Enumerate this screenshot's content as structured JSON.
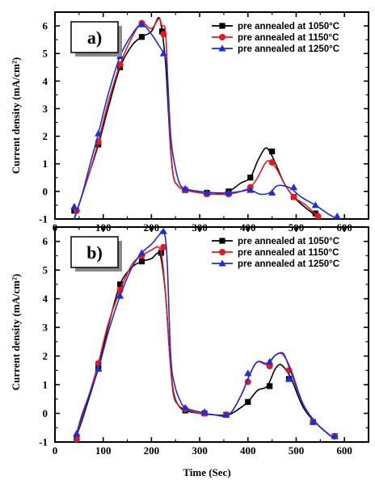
{
  "chart_data": [
    {
      "type": "line",
      "panel_label": "a)",
      "ylabel": "Current density (mA/cm²)",
      "xlabel": "",
      "xlim": [
        0,
        650
      ],
      "ylim": [
        -1,
        6.5
      ],
      "xticks": [
        "0",
        "100",
        "200",
        "300",
        "400",
        "500",
        "600"
      ],
      "yticks": [
        "-1",
        "0",
        "1",
        "2",
        "3",
        "4",
        "5",
        "6"
      ],
      "legend_position": "top-right",
      "series": [
        {
          "name": "pre annealed at 1050°C",
          "color": "#000000",
          "marker": "square",
          "x": [
            40,
            55,
            70,
            90,
            110,
            135,
            160,
            180,
            200,
            215,
            222,
            230,
            238,
            245,
            255,
            270,
            300,
            330,
            360,
            385,
            405,
            420,
            435,
            445,
            460,
            475,
            495,
            520,
            550
          ],
          "y": [
            -1,
            -0.2,
            0.6,
            1.7,
            3.0,
            4.5,
            5.3,
            5.6,
            5.8,
            6.3,
            5.8,
            4.5,
            2.0,
            0.6,
            0.2,
            0.05,
            -0.05,
            -0.1,
            0.0,
            0.3,
            0.5,
            1.1,
            1.55,
            1.45,
            0.9,
            0.3,
            -0.2,
            -0.6,
            -1.0
          ],
          "marker_x": [
            40,
            90,
            135,
            180,
            222,
            270,
            315,
            360,
            405,
            450,
            495,
            540
          ],
          "marker_y": [
            -0.7,
            1.7,
            4.5,
            5.6,
            5.8,
            0.05,
            -0.05,
            0.0,
            0.5,
            1.45,
            -0.2,
            -0.8
          ]
        },
        {
          "name": "pre annealed at 1150°C",
          "color": "#e8181e",
          "marker": "circle",
          "x": [
            40,
            55,
            70,
            90,
            110,
            135,
            160,
            180,
            200,
            215,
            222,
            230,
            238,
            245,
            255,
            270,
            300,
            330,
            360,
            385,
            405,
            420,
            435,
            445,
            460,
            475,
            495,
            520,
            550
          ],
          "y": [
            -1,
            -0.2,
            0.6,
            1.8,
            3.2,
            4.6,
            5.6,
            6.1,
            5.9,
            6.25,
            6.0,
            5.6,
            2.0,
            0.6,
            0.2,
            0.05,
            -0.05,
            -0.1,
            -0.1,
            0.0,
            0.15,
            0.5,
            1.0,
            1.1,
            0.8,
            0.3,
            -0.2,
            -0.5,
            -1.0
          ],
          "marker_x": [
            45,
            90,
            135,
            180,
            225,
            270,
            315,
            360,
            405,
            450,
            495,
            545
          ],
          "marker_y": [
            -0.7,
            1.8,
            4.6,
            6.1,
            5.7,
            0.05,
            -0.1,
            -0.1,
            0.15,
            1.05,
            -0.2,
            -0.9
          ]
        },
        {
          "name": "pre annealed at 1250°C",
          "color": "#1a2ee0",
          "marker": "triangle",
          "x": [
            40,
            55,
            70,
            90,
            110,
            135,
            160,
            180,
            200,
            215,
            225,
            232,
            240,
            248,
            258,
            270,
            300,
            330,
            360,
            385,
            405,
            425,
            445,
            460,
            475,
            490,
            510,
            540,
            565,
            585
          ],
          "y": [
            -1,
            -0.2,
            0.8,
            2.1,
            3.5,
            4.9,
            5.7,
            6.05,
            5.7,
            5.3,
            5.0,
            4.5,
            2.0,
            1.0,
            0.3,
            0.1,
            0.0,
            -0.05,
            -0.05,
            0.0,
            0.05,
            -0.1,
            -0.05,
            0.2,
            0.2,
            0.1,
            -0.2,
            -0.5,
            -0.8,
            -1.0
          ],
          "marker_x": [
            40,
            90,
            135,
            180,
            225,
            270,
            315,
            360,
            405,
            450,
            495,
            540,
            585
          ],
          "marker_y": [
            -0.55,
            2.1,
            4.9,
            6.05,
            5.0,
            0.1,
            -0.05,
            -0.05,
            0.05,
            -0.05,
            0.15,
            -0.5,
            -0.9
          ]
        }
      ]
    },
    {
      "type": "line",
      "panel_label": "b)",
      "ylabel": "Current density (mA/cm²)",
      "xlabel": "Time (Sec)",
      "xlim": [
        0,
        650
      ],
      "ylim": [
        -1,
        6.5
      ],
      "xticks": [
        "0",
        "100",
        "200",
        "300",
        "400",
        "500",
        "600"
      ],
      "yticks": [
        "-1",
        "0",
        "1",
        "2",
        "3",
        "4",
        "5",
        "6"
      ],
      "legend_position": "top-right",
      "series": [
        {
          "name": "pre annealed at 1050°C",
          "color": "#000000",
          "marker": "square",
          "x": [
            40,
            55,
            70,
            90,
            110,
            135,
            160,
            180,
            200,
            215,
            222,
            230,
            238,
            245,
            255,
            270,
            300,
            330,
            360,
            385,
            400,
            420,
            440,
            455,
            465,
            475,
            490,
            515,
            545,
            580
          ],
          "y": [
            -1,
            -0.3,
            0.5,
            1.6,
            3.0,
            4.5,
            5.1,
            5.3,
            5.4,
            5.6,
            5.2,
            4.0,
            2.0,
            0.8,
            0.3,
            0.1,
            0.0,
            -0.05,
            -0.05,
            0.2,
            0.4,
            0.8,
            0.95,
            1.5,
            1.7,
            1.6,
            1.2,
            0.2,
            -0.4,
            -0.9
          ],
          "marker_x": [
            45,
            90,
            135,
            180,
            220,
            270,
            310,
            355,
            400,
            445,
            485,
            535,
            580
          ],
          "marker_y": [
            -0.85,
            1.6,
            4.5,
            5.3,
            5.6,
            0.1,
            0.0,
            -0.05,
            0.4,
            0.95,
            1.2,
            -0.3,
            -0.8
          ]
        },
        {
          "name": "pre annealed at 1150°C",
          "color": "#e8181e",
          "marker": "circle",
          "x": [
            40,
            55,
            70,
            90,
            110,
            135,
            160,
            180,
            200,
            215,
            222,
            230,
            238,
            245,
            255,
            270,
            300,
            330,
            360,
            385,
            405,
            420,
            440,
            455,
            465,
            475,
            490,
            515,
            545,
            580
          ],
          "y": [
            -1,
            -0.2,
            0.6,
            1.75,
            3.1,
            4.3,
            5.2,
            5.5,
            5.7,
            5.8,
            5.4,
            4.0,
            2.0,
            0.7,
            0.3,
            0.15,
            0.0,
            -0.05,
            -0.05,
            0.6,
            1.4,
            1.8,
            1.7,
            2.0,
            2.1,
            2.0,
            1.5,
            0.3,
            -0.4,
            -0.9
          ],
          "marker_x": [
            45,
            90,
            135,
            180,
            225,
            270,
            310,
            355,
            400,
            445,
            485,
            535,
            580
          ],
          "marker_y": [
            -0.9,
            1.75,
            4.3,
            5.5,
            5.8,
            0.15,
            0.0,
            -0.05,
            1.1,
            1.65,
            1.5,
            -0.3,
            -0.8
          ]
        },
        {
          "name": "pre annealed at 1250°C",
          "color": "#1a2ee0",
          "marker": "triangle",
          "x": [
            40,
            55,
            70,
            90,
            110,
            135,
            160,
            180,
            200,
            215,
            225,
            232,
            240,
            248,
            258,
            270,
            300,
            330,
            360,
            385,
            405,
            420,
            440,
            455,
            465,
            475,
            490,
            515,
            545,
            580
          ],
          "y": [
            -1,
            -0.1,
            0.6,
            1.55,
            2.8,
            4.1,
            5.1,
            5.6,
            5.9,
            6.2,
            6.35,
            5.5,
            2.0,
            1.0,
            0.5,
            0.2,
            0.05,
            -0.05,
            -0.05,
            0.6,
            1.4,
            1.8,
            1.75,
            2.0,
            2.1,
            2.05,
            1.4,
            0.3,
            -0.4,
            -0.9
          ],
          "marker_x": [
            45,
            90,
            135,
            180,
            225,
            270,
            310,
            355,
            400,
            445,
            485,
            535,
            580
          ],
          "marker_y": [
            -0.7,
            1.55,
            4.1,
            5.6,
            6.35,
            0.2,
            0.05,
            -0.05,
            1.4,
            1.8,
            1.2,
            -0.3,
            -0.8
          ]
        }
      ]
    }
  ]
}
